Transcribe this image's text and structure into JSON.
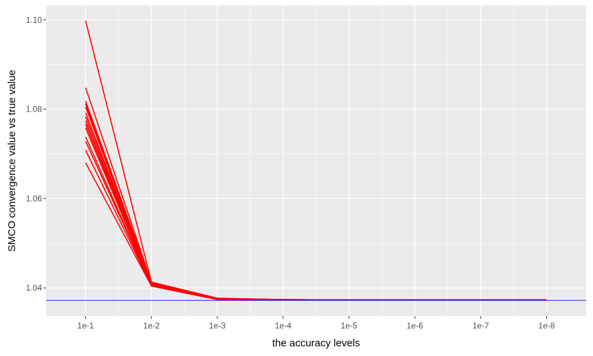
{
  "chart_data": {
    "type": "line",
    "title": "",
    "xlabel": "the accuracy levels",
    "ylabel": "SMCO convergence value vs true value",
    "categories": [
      "1e-1",
      "1e-2",
      "1e-3",
      "1e-4",
      "1e-5",
      "1e-6",
      "1e-7",
      "1e-8"
    ],
    "ylim": [
      1.0337,
      1.1032
    ],
    "y_ticks": [
      1.04,
      1.06,
      1.08,
      1.1
    ],
    "y_tick_labels": [
      "1.04",
      "1.06",
      "1.08",
      "1.10"
    ],
    "grid": true,
    "legend": "none",
    "series_color": "#ff0000",
    "reference_color": "#0000ff",
    "panel_color": "#ebebeb",
    "grid_color": "#ffffff",
    "series": [
      {
        "values": [
          1.0998,
          1.0413,
          1.0377,
          1.0374,
          1.0373,
          1.0373,
          1.0373,
          1.0373
        ]
      },
      {
        "values": [
          1.0848,
          1.0412,
          1.0376,
          1.0374,
          1.0373,
          1.0373,
          1.0373,
          1.0373
        ]
      },
      {
        "values": [
          1.0818,
          1.0411,
          1.0376,
          1.0374,
          1.0373,
          1.0373,
          1.0373,
          1.0373
        ]
      },
      {
        "values": [
          1.0812,
          1.041,
          1.0376,
          1.0374,
          1.0373,
          1.0373,
          1.0373,
          1.0373
        ]
      },
      {
        "values": [
          1.0805,
          1.041,
          1.0376,
          1.0373,
          1.0373,
          1.0373,
          1.0373,
          1.0373
        ]
      },
      {
        "values": [
          1.0792,
          1.0409,
          1.0376,
          1.0373,
          1.0373,
          1.0373,
          1.0373,
          1.0373
        ]
      },
      {
        "values": [
          1.0783,
          1.0409,
          1.0375,
          1.0373,
          1.0373,
          1.0373,
          1.0373,
          1.0373
        ]
      },
      {
        "values": [
          1.0774,
          1.0408,
          1.0375,
          1.0373,
          1.0373,
          1.0373,
          1.0373,
          1.0373
        ]
      },
      {
        "values": [
          1.0766,
          1.0408,
          1.0375,
          1.0373,
          1.0373,
          1.0373,
          1.0373,
          1.0373
        ]
      },
      {
        "values": [
          1.0758,
          1.0407,
          1.0375,
          1.0373,
          1.0373,
          1.0373,
          1.0373,
          1.0373
        ]
      },
      {
        "values": [
          1.0738,
          1.0406,
          1.0375,
          1.0373,
          1.0373,
          1.0373,
          1.0373,
          1.0373
        ]
      },
      {
        "values": [
          1.0728,
          1.0406,
          1.0375,
          1.0373,
          1.0373,
          1.0373,
          1.0373,
          1.0373
        ]
      },
      {
        "values": [
          1.0708,
          1.0405,
          1.0374,
          1.0373,
          1.0373,
          1.0373,
          1.0373,
          1.0373
        ]
      },
      {
        "values": [
          1.068,
          1.0404,
          1.0374,
          1.0373,
          1.0373,
          1.0373,
          1.0373,
          1.0373
        ]
      }
    ],
    "reference_line": {
      "y": 1.0372
    }
  }
}
